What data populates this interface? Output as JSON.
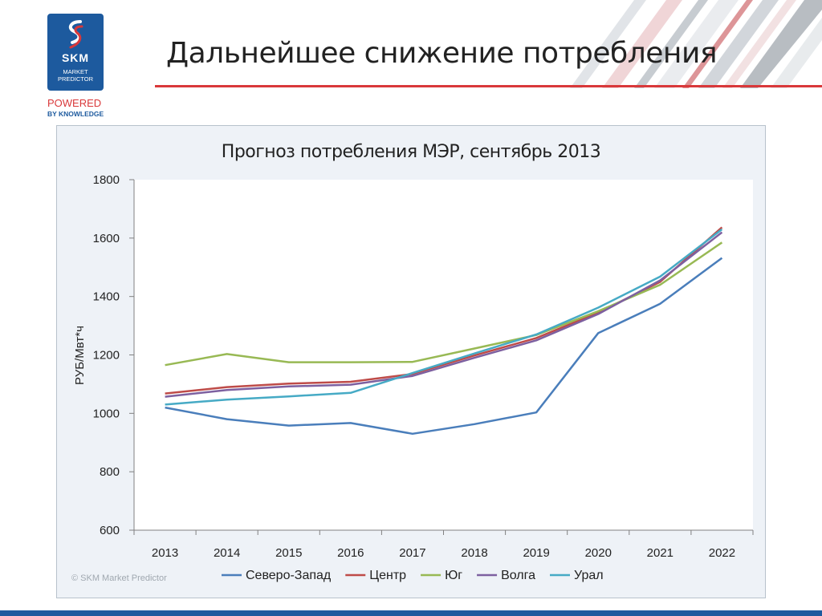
{
  "header": {
    "title": "Дальнейшее снижение потребления",
    "logo_text": "SKM",
    "logo_subtitle_line1": "MARKET",
    "logo_subtitle_line2": "PREDICTOR",
    "powered": "POWERED",
    "by_knowledge": "BY KNOWLEDGE"
  },
  "footer": {
    "copyright": "© SKM Market Predictor"
  },
  "colors": {
    "brand_blue": "#1d5a9e",
    "brand_red": "#d9383a"
  },
  "chart_data": {
    "type": "line",
    "title": "Прогноз потребления МЭР, сентябрь 2013",
    "ylabel": "РУБ/Мвт*ч",
    "xlabel": "",
    "ylim": [
      600,
      1800
    ],
    "yticks": [
      600,
      800,
      1000,
      1200,
      1400,
      1600,
      1800
    ],
    "categories": [
      "2013",
      "2014",
      "2015",
      "2016",
      "2017",
      "2018",
      "2019",
      "2020",
      "2021",
      "2022"
    ],
    "legend_position": "bottom",
    "grid": false,
    "series": [
      {
        "name": "Северо-Запад",
        "color": "#4a7ebb",
        "values": [
          1020,
          980,
          958,
          967,
          930,
          963,
          1003,
          1275,
          1375,
          1532
        ]
      },
      {
        "name": "Центр",
        "color": "#be4b48",
        "values": [
          1068,
          1090,
          1102,
          1108,
          1135,
          1198,
          1258,
          1345,
          1450,
          1637
        ]
      },
      {
        "name": "Юг",
        "color": "#98b954",
        "values": [
          1165,
          1203,
          1175,
          1175,
          1176,
          1222,
          1268,
          1350,
          1440,
          1585
        ]
      },
      {
        "name": "Волга",
        "color": "#7d60a0",
        "values": [
          1057,
          1080,
          1092,
          1098,
          1128,
          1190,
          1250,
          1340,
          1455,
          1620
        ]
      },
      {
        "name": "Урал",
        "color": "#46aac5",
        "values": [
          1030,
          1047,
          1058,
          1070,
          1138,
          1205,
          1270,
          1362,
          1468,
          1630
        ]
      }
    ]
  }
}
